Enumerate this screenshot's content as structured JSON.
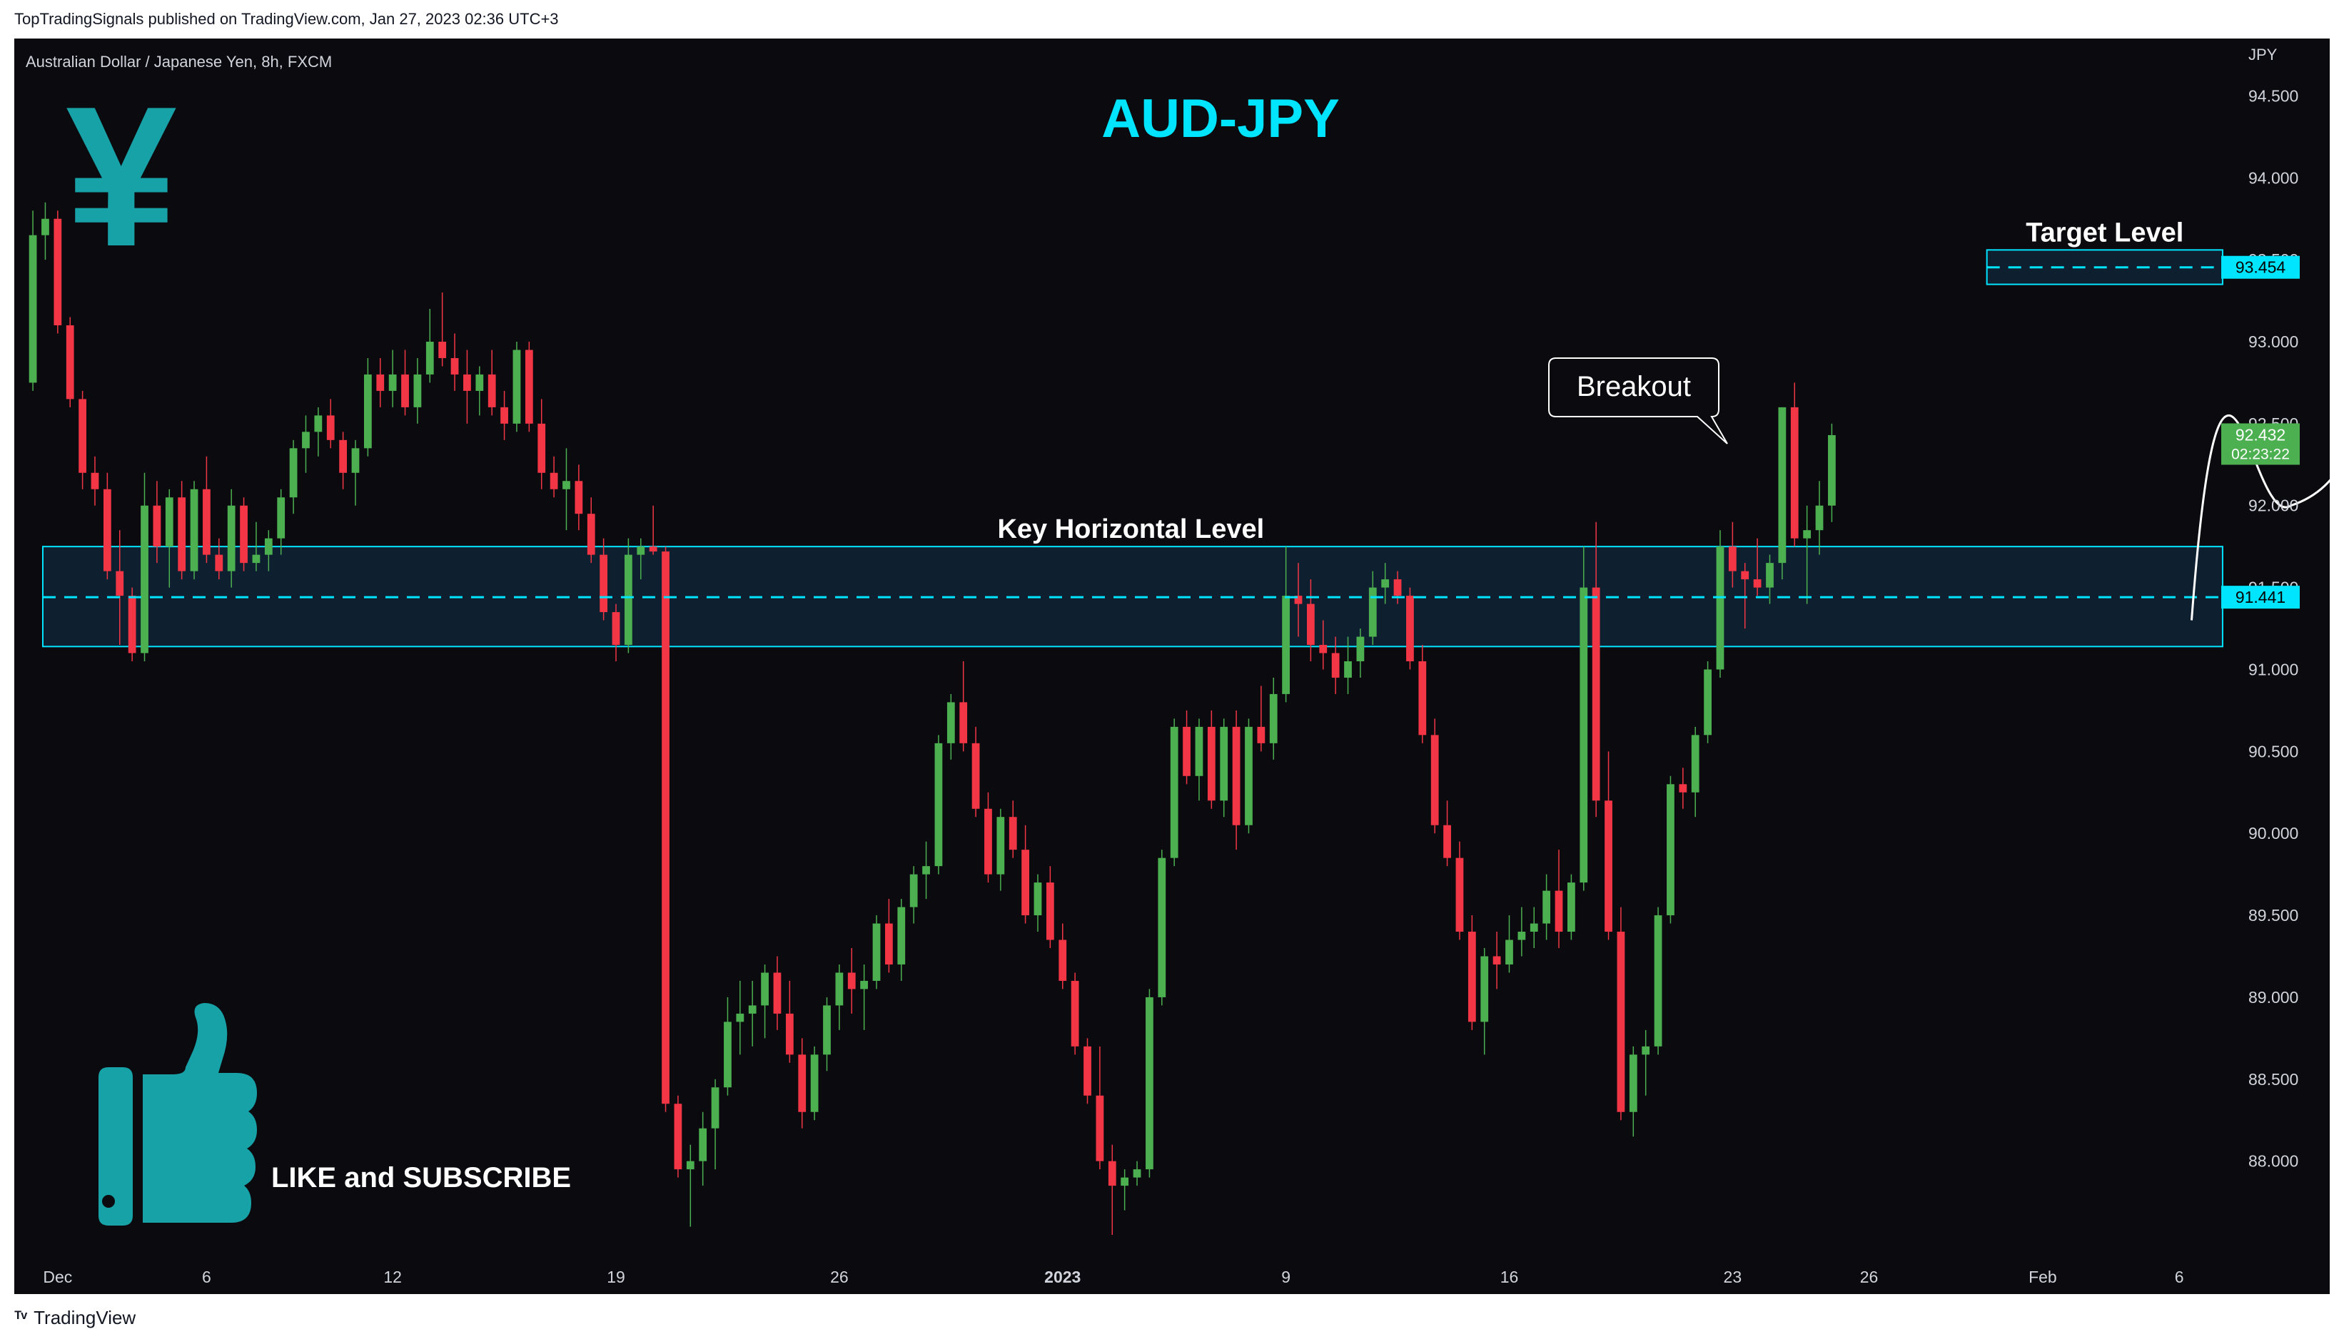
{
  "header": {
    "published_line": "TopTradingSignals published on TradingView.com, Jan 27, 2023 02:36 UTC+3"
  },
  "footer": {
    "brand": "TradingView"
  },
  "colors": {
    "background": "#0a0a0f",
    "up": "#4caf50",
    "down": "#f23645",
    "accent": "#00e5ff",
    "zone_fill": "#0f2436",
    "axis_text": "#d1d4dc"
  },
  "chart_data": {
    "type": "candlestick",
    "symbol_line": "Australian Dollar / Japanese Yen, 8h, FXCM",
    "title": "AUD-JPY",
    "currency_label": "JPY",
    "y_ticks": [
      "94.500",
      "94.000",
      "93.500",
      "93.000",
      "92.500",
      "92.000",
      "91.500",
      "91.000",
      "90.500",
      "90.000",
      "89.500",
      "89.000",
      "88.500",
      "88.000"
    ],
    "y_tick_values": [
      94.5,
      94.0,
      93.5,
      93.0,
      92.5,
      92.0,
      91.5,
      91.0,
      90.5,
      90.0,
      89.5,
      89.0,
      88.5,
      88.0
    ],
    "ylim": [
      87.45,
      94.85
    ],
    "x_ticks": [
      {
        "label": "Dec",
        "index": 2
      },
      {
        "label": "6",
        "index": 14
      },
      {
        "label": "12",
        "index": 29
      },
      {
        "label": "19",
        "index": 47
      },
      {
        "label": "26",
        "index": 65
      },
      {
        "label": "2023",
        "index": 83
      },
      {
        "label": "9",
        "index": 101
      },
      {
        "label": "16",
        "index": 119
      },
      {
        "label": "23",
        "index": 137
      },
      {
        "label": "26",
        "index": 148
      },
      {
        "label": "Feb",
        "index": 162
      },
      {
        "label": "6",
        "index": 173
      }
    ],
    "x_index_range": [
      -1.5,
      178
    ],
    "candles": [
      [
        92.75,
        93.8,
        92.7,
        93.65
      ],
      [
        93.65,
        93.85,
        93.5,
        93.75
      ],
      [
        93.75,
        93.8,
        93.05,
        93.1
      ],
      [
        93.1,
        93.15,
        92.6,
        92.65
      ],
      [
        92.65,
        92.7,
        92.1,
        92.2
      ],
      [
        92.2,
        92.3,
        92.0,
        92.1
      ],
      [
        92.1,
        92.2,
        91.55,
        91.6
      ],
      [
        91.6,
        91.85,
        91.15,
        91.45
      ],
      [
        91.45,
        91.5,
        91.05,
        91.1
      ],
      [
        91.1,
        92.2,
        91.05,
        92.0
      ],
      [
        92.0,
        92.15,
        91.65,
        91.75
      ],
      [
        91.75,
        92.1,
        91.5,
        92.05
      ],
      [
        92.05,
        92.15,
        91.55,
        91.6
      ],
      [
        91.6,
        92.15,
        91.55,
        92.1
      ],
      [
        92.1,
        92.3,
        91.65,
        91.7
      ],
      [
        91.7,
        91.8,
        91.55,
        91.6
      ],
      [
        91.6,
        92.1,
        91.5,
        92.0
      ],
      [
        92.0,
        92.05,
        91.6,
        91.65
      ],
      [
        91.65,
        91.9,
        91.6,
        91.7
      ],
      [
        91.7,
        91.85,
        91.6,
        91.8
      ],
      [
        91.8,
        92.1,
        91.7,
        92.05
      ],
      [
        92.05,
        92.4,
        91.95,
        92.35
      ],
      [
        92.35,
        92.55,
        92.2,
        92.45
      ],
      [
        92.45,
        92.6,
        92.3,
        92.55
      ],
      [
        92.55,
        92.65,
        92.35,
        92.4
      ],
      [
        92.4,
        92.45,
        92.1,
        92.2
      ],
      [
        92.2,
        92.4,
        92.0,
        92.35
      ],
      [
        92.35,
        92.9,
        92.3,
        92.8
      ],
      [
        92.8,
        92.9,
        92.6,
        92.7
      ],
      [
        92.7,
        92.95,
        92.6,
        92.8
      ],
      [
        92.8,
        92.95,
        92.55,
        92.6
      ],
      [
        92.6,
        92.9,
        92.5,
        92.8
      ],
      [
        92.8,
        93.2,
        92.75,
        93.0
      ],
      [
        93.0,
        93.3,
        92.85,
        92.9
      ],
      [
        92.9,
        93.05,
        92.7,
        92.8
      ],
      [
        92.8,
        92.95,
        92.5,
        92.7
      ],
      [
        92.7,
        92.85,
        92.55,
        92.8
      ],
      [
        92.8,
        92.95,
        92.55,
        92.6
      ],
      [
        92.6,
        92.7,
        92.4,
        92.5
      ],
      [
        92.5,
        93.0,
        92.45,
        92.95
      ],
      [
        92.95,
        93.0,
        92.45,
        92.5
      ],
      [
        92.5,
        92.65,
        92.1,
        92.2
      ],
      [
        92.2,
        92.3,
        92.05,
        92.1
      ],
      [
        92.1,
        92.35,
        91.85,
        92.15
      ],
      [
        92.15,
        92.25,
        91.85,
        91.95
      ],
      [
        91.95,
        92.05,
        91.65,
        91.7
      ],
      [
        91.7,
        91.8,
        91.3,
        91.35
      ],
      [
        91.35,
        91.4,
        91.05,
        91.15
      ],
      [
        91.15,
        91.8,
        91.1,
        91.7
      ],
      [
        91.7,
        91.8,
        91.55,
        91.75
      ],
      [
        91.75,
        92.0,
        91.7,
        91.72
      ],
      [
        91.72,
        91.75,
        88.3,
        88.35
      ],
      [
        88.35,
        88.4,
        87.9,
        87.95
      ],
      [
        87.95,
        88.1,
        87.6,
        88.0
      ],
      [
        88.0,
        88.3,
        87.85,
        88.2
      ],
      [
        88.2,
        88.5,
        87.95,
        88.45
      ],
      [
        88.45,
        89.0,
        88.4,
        88.85
      ],
      [
        88.85,
        89.1,
        88.65,
        88.9
      ],
      [
        88.9,
        89.1,
        88.7,
        88.95
      ],
      [
        88.95,
        89.2,
        88.75,
        89.15
      ],
      [
        89.15,
        89.25,
        88.8,
        88.9
      ],
      [
        88.9,
        89.1,
        88.6,
        88.65
      ],
      [
        88.65,
        88.75,
        88.2,
        88.3
      ],
      [
        88.3,
        88.7,
        88.25,
        88.65
      ],
      [
        88.65,
        89.0,
        88.55,
        88.95
      ],
      [
        88.95,
        89.2,
        88.8,
        89.15
      ],
      [
        89.15,
        89.3,
        88.9,
        89.05
      ],
      [
        89.05,
        89.2,
        88.8,
        89.1
      ],
      [
        89.1,
        89.5,
        89.05,
        89.45
      ],
      [
        89.45,
        89.6,
        89.15,
        89.2
      ],
      [
        89.2,
        89.6,
        89.1,
        89.55
      ],
      [
        89.55,
        89.8,
        89.45,
        89.75
      ],
      [
        89.75,
        89.95,
        89.6,
        89.8
      ],
      [
        89.8,
        90.6,
        89.75,
        90.55
      ],
      [
        90.55,
        90.85,
        90.45,
        90.8
      ],
      [
        90.8,
        91.05,
        90.5,
        90.55
      ],
      [
        90.55,
        90.65,
        90.1,
        90.15
      ],
      [
        90.15,
        90.25,
        89.7,
        89.75
      ],
      [
        89.75,
        90.15,
        89.65,
        90.1
      ],
      [
        90.1,
        90.2,
        89.85,
        89.9
      ],
      [
        89.9,
        90.05,
        89.45,
        89.5
      ],
      [
        89.5,
        89.75,
        89.4,
        89.7
      ],
      [
        89.7,
        89.8,
        89.3,
        89.35
      ],
      [
        89.35,
        89.45,
        89.05,
        89.1
      ],
      [
        89.1,
        89.15,
        88.65,
        88.7
      ],
      [
        88.7,
        88.75,
        88.35,
        88.4
      ],
      [
        88.4,
        88.7,
        87.95,
        88.0
      ],
      [
        88.0,
        88.1,
        87.55,
        87.85
      ],
      [
        87.85,
        87.95,
        87.7,
        87.9
      ],
      [
        87.9,
        88.0,
        87.85,
        87.95
      ],
      [
        87.95,
        89.05,
        87.9,
        89.0
      ],
      [
        89.0,
        89.9,
        88.95,
        89.85
      ],
      [
        89.85,
        90.7,
        89.8,
        90.65
      ],
      [
        90.65,
        90.75,
        90.3,
        90.35
      ],
      [
        90.35,
        90.7,
        90.2,
        90.65
      ],
      [
        90.65,
        90.75,
        90.15,
        90.2
      ],
      [
        90.2,
        90.7,
        90.1,
        90.65
      ],
      [
        90.65,
        90.75,
        89.9,
        90.05
      ],
      [
        90.05,
        90.7,
        90.0,
        90.65
      ],
      [
        90.65,
        90.9,
        90.5,
        90.55
      ],
      [
        90.55,
        90.95,
        90.45,
        90.85
      ],
      [
        90.85,
        91.75,
        90.8,
        91.45
      ],
      [
        91.45,
        91.65,
        91.2,
        91.4
      ],
      [
        91.4,
        91.55,
        91.05,
        91.15
      ],
      [
        91.15,
        91.3,
        91.0,
        91.1
      ],
      [
        91.1,
        91.2,
        90.85,
        90.95
      ],
      [
        90.95,
        91.2,
        90.85,
        91.05
      ],
      [
        91.05,
        91.25,
        90.95,
        91.2
      ],
      [
        91.2,
        91.6,
        91.15,
        91.5
      ],
      [
        91.5,
        91.65,
        91.4,
        91.55
      ],
      [
        91.55,
        91.6,
        91.4,
        91.45
      ],
      [
        91.45,
        91.5,
        91.0,
        91.05
      ],
      [
        91.05,
        91.15,
        90.55,
        90.6
      ],
      [
        90.6,
        90.7,
        90.0,
        90.05
      ],
      [
        90.05,
        90.2,
        89.8,
        89.85
      ],
      [
        89.85,
        89.95,
        89.35,
        89.4
      ],
      [
        89.4,
        89.5,
        88.8,
        88.85
      ],
      [
        88.85,
        89.3,
        88.65,
        89.25
      ],
      [
        89.25,
        89.4,
        89.05,
        89.2
      ],
      [
        89.2,
        89.5,
        89.15,
        89.35
      ],
      [
        89.35,
        89.55,
        89.25,
        89.4
      ],
      [
        89.4,
        89.55,
        89.3,
        89.45
      ],
      [
        89.45,
        89.75,
        89.35,
        89.65
      ],
      [
        89.65,
        89.9,
        89.3,
        89.4
      ],
      [
        89.4,
        89.75,
        89.35,
        89.7
      ],
      [
        89.7,
        91.75,
        89.65,
        91.5
      ],
      [
        91.5,
        91.9,
        90.1,
        90.2
      ],
      [
        90.2,
        90.5,
        89.35,
        89.4
      ],
      [
        89.4,
        89.55,
        88.25,
        88.3
      ],
      [
        88.3,
        88.7,
        88.15,
        88.65
      ],
      [
        88.65,
        88.8,
        88.4,
        88.7
      ],
      [
        88.7,
        89.55,
        88.65,
        89.5
      ],
      [
        89.5,
        90.35,
        89.45,
        90.3
      ],
      [
        90.3,
        90.4,
        90.15,
        90.25
      ],
      [
        90.25,
        90.65,
        90.1,
        90.6
      ],
      [
        90.6,
        91.05,
        90.55,
        91.0
      ],
      [
        91.0,
        91.85,
        90.95,
        91.75
      ],
      [
        91.75,
        91.9,
        91.5,
        91.6
      ],
      [
        91.6,
        91.65,
        91.25,
        91.55
      ],
      [
        91.55,
        91.8,
        91.45,
        91.5
      ],
      [
        91.5,
        91.7,
        91.4,
        91.65
      ],
      [
        91.65,
        92.6,
        91.55,
        92.6
      ],
      [
        92.6,
        92.75,
        91.75,
        91.8
      ],
      [
        91.8,
        92.0,
        91.4,
        91.85
      ],
      [
        91.85,
        92.15,
        91.7,
        92.0
      ],
      [
        92.0,
        92.5,
        91.9,
        92.43
      ]
    ],
    "key_level": {
      "label": "Key Horizontal Level",
      "price": 91.441,
      "price_label": "91.441",
      "zone_top": 91.75,
      "zone_bottom": 91.14
    },
    "target_level": {
      "label": "Target Level",
      "price": 93.454,
      "price_label": "93.454",
      "zone_top": 93.56,
      "zone_bottom": 93.35
    },
    "last_price": {
      "price": 92.432,
      "price_label": "92.432",
      "countdown": "02:23:22"
    },
    "breakout_label": "Breakout",
    "projection_path": [
      [
        174.0,
        91.3
      ],
      [
        177.0,
        92.55
      ],
      [
        182.0,
        92.0
      ],
      [
        189.0,
        93.35
      ]
    ],
    "promo_text": "LIKE and SUBSCRIBE",
    "logo_glyph": "¥"
  }
}
